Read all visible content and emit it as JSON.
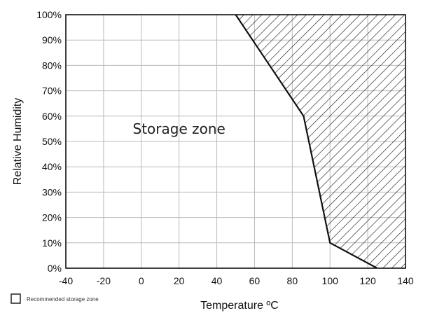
{
  "chart_data": {
    "type": "area",
    "xlabel": "Temperature ºC",
    "ylabel": "Relative Humidity",
    "xlim": [
      -40,
      140
    ],
    "ylim": [
      0,
      100
    ],
    "x_ticks": [
      -40,
      -20,
      0,
      20,
      40,
      60,
      80,
      100,
      120,
      140
    ],
    "y_ticks": [
      0,
      10,
      20,
      30,
      40,
      50,
      60,
      70,
      80,
      90,
      100
    ],
    "x_tick_labels": [
      "-40",
      "-20",
      "0",
      "20",
      "40",
      "60",
      "80",
      "100",
      "120",
      "140"
    ],
    "y_tick_labels": [
      "0%",
      "10%",
      "20%",
      "30%",
      "40%",
      "50%",
      "60%",
      "70%",
      "80%",
      "90%",
      "100%"
    ],
    "grid": true,
    "boundary": {
      "x": [
        50,
        86,
        100,
        125
      ],
      "y": [
        100,
        60,
        10,
        0
      ]
    },
    "hatched_region": "right of boundary",
    "annotations": [
      {
        "text": "Storage zone",
        "x": 20,
        "y": 55
      }
    ],
    "legend": {
      "placement": "bottom-left",
      "entries": [
        {
          "label": "Recommended storage zone",
          "swatch": "open-square"
        }
      ]
    },
    "colors": {
      "line": "#111111",
      "grid": "#bbbbbb",
      "hatch": "#222222",
      "background": "#ffffff"
    }
  }
}
